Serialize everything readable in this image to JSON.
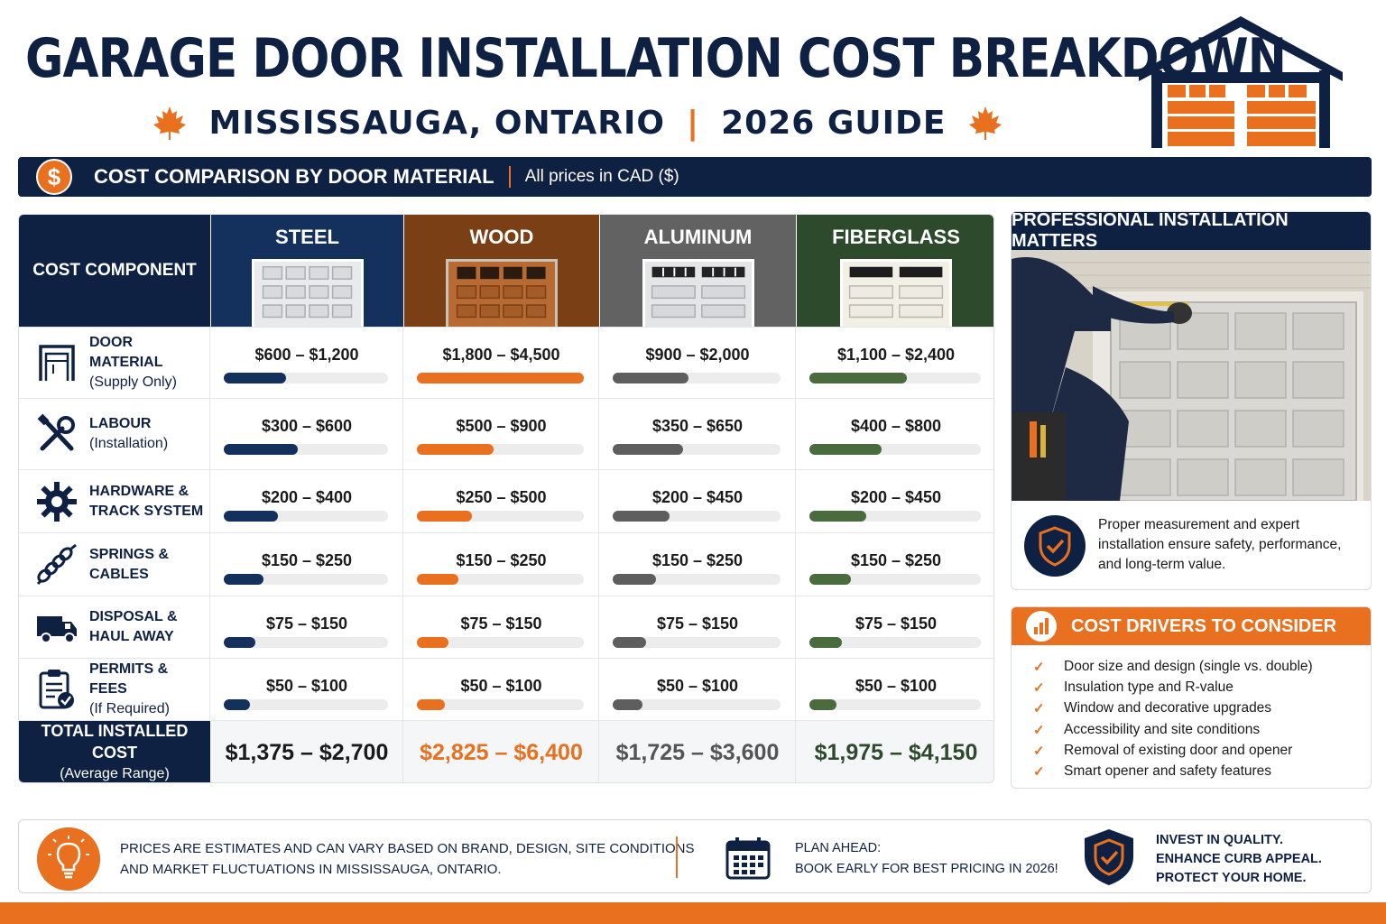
{
  "header": {
    "title": "GARAGE DOOR INSTALLATION COST BREAKDOWN",
    "location": "MISSISSAUGA, ONTARIO",
    "separator": "|",
    "guide": "2026 GUIDE"
  },
  "banner": {
    "icon": "dollar-icon",
    "symbol": "$",
    "title": "COST COMPARISON BY DOOR MATERIAL",
    "note": "All prices in CAD ($)"
  },
  "table": {
    "component_header": "COST COMPONENT",
    "materials": [
      {
        "name": "STEEL",
        "color": "#14305c",
        "bar_color": "#14305c",
        "total_color": "#1a1a1a"
      },
      {
        "name": "WOOD",
        "color": "#7a3f14",
        "bar_color": "#e8701e",
        "total_color": "#e8701e"
      },
      {
        "name": "ALUMINUM",
        "color": "#626262",
        "bar_color": "#5e5e5e",
        "total_color": "#555555"
      },
      {
        "name": "FIBERGLASS",
        "color": "#2e4a2c",
        "bar_color": "#4a6b3e",
        "total_color": "#2e4a2c"
      }
    ],
    "rows": [
      {
        "icon": "door-frame-icon",
        "title": "DOOR MATERIAL",
        "sub": "(Supply Only)",
        "prices": [
          "$600 – $1,200",
          "$1,800 – $4,500",
          "$900 – $2,000",
          "$1,100 – $2,400"
        ],
        "levels": [
          0.38,
          1.0,
          0.45,
          0.57
        ]
      },
      {
        "icon": "tools-icon",
        "title": "LABOUR",
        "sub": "(Installation)",
        "prices": [
          "$300 – $600",
          "$500 – $900",
          "$350 – $650",
          "$400 – $800"
        ],
        "levels": [
          0.45,
          0.46,
          0.42,
          0.42
        ]
      },
      {
        "icon": "gear-icon",
        "title": "HARDWARE &",
        "sub": "TRACK SYSTEM",
        "prices": [
          "$200 – $400",
          "$250 – $500",
          "$200 – $450",
          "$200 – $450"
        ],
        "levels": [
          0.33,
          0.33,
          0.34,
          0.33
        ]
      },
      {
        "icon": "spring-icon",
        "title": "SPRINGS &",
        "sub": "CABLES",
        "prices": [
          "$150 – $250",
          "$150 – $250",
          "$150 – $250",
          "$150 – $250"
        ],
        "levels": [
          0.24,
          0.25,
          0.26,
          0.24
        ]
      },
      {
        "icon": "truck-icon",
        "title": "DISPOSAL &",
        "sub": "HAUL AWAY",
        "prices": [
          "$75 – $150",
          "$75 – $150",
          "$75 – $150",
          "$75 – $150"
        ],
        "levels": [
          0.19,
          0.19,
          0.2,
          0.19
        ]
      },
      {
        "icon": "clipboard-check-icon",
        "title": "PERMITS & FEES",
        "sub": "(If Required)",
        "prices": [
          "$50 – $100",
          "$50 – $100",
          "$50 – $100",
          "$50 – $100"
        ],
        "levels": [
          0.16,
          0.17,
          0.18,
          0.16
        ]
      }
    ],
    "total": {
      "label": "TOTAL INSTALLED COST",
      "sub": "(Average Range)",
      "values": [
        "$1,375 – $2,700",
        "$2,825 – $6,400",
        "$1,725 – $3,600",
        "$1,975 – $4,150"
      ]
    }
  },
  "pro": {
    "title": "PROFESSIONAL INSTALLATION MATTERS",
    "text": "Proper measurement and expert installation ensure safety, performance, and long-term value."
  },
  "drivers": {
    "title": "COST DRIVERS TO CONSIDER",
    "items": [
      "Door size and design (single vs. double)",
      "Insulation type and R-value",
      "Window and decorative upgrades",
      "Accessibility and site conditions",
      "Removal of existing door and opener",
      "Smart opener and safety features"
    ]
  },
  "footer": {
    "note_line1": "Prices are estimates and can vary based on brand, design, site conditions",
    "note_line2": "and market fluctuations in Mississauga, Ontario.",
    "plan_title": "PLAN AHEAD:",
    "plan_text": "BOOK EARLY FOR BEST PRICING IN 2026!",
    "invest_1": "INVEST IN QUALITY.",
    "invest_2": "ENHANCE CURB APPEAL.",
    "invest_3": "PROTECT YOUR HOME."
  },
  "colors": {
    "navy": "#0f2142",
    "orange": "#e8701e"
  }
}
